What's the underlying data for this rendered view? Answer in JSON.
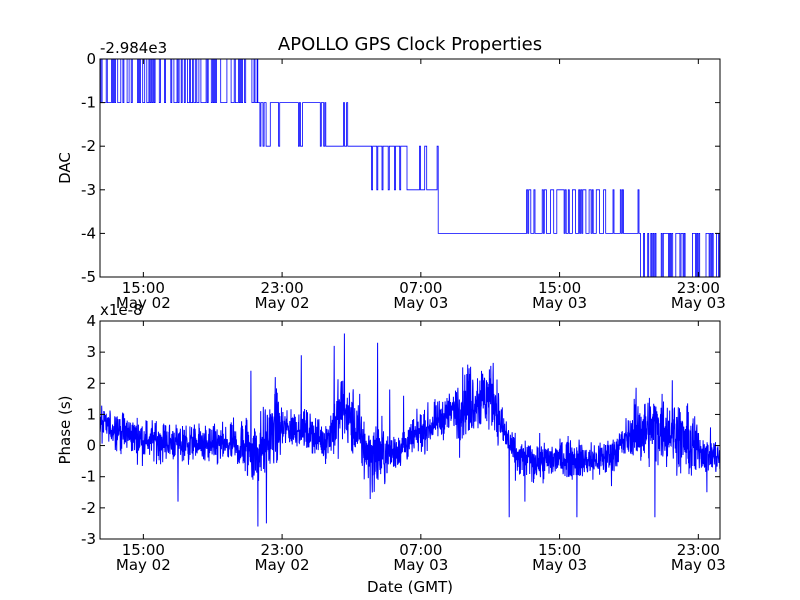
{
  "title": "APOLLO GPS Clock Properties",
  "colors": {
    "series": "#0000ff",
    "axes": "#000000",
    "background": "#ffffff"
  },
  "chart_data": [
    {
      "type": "line",
      "title": "APOLLO GPS Clock Properties",
      "ylabel": "DAC",
      "xlabel": "",
      "y_offset_label": "-2.984e3",
      "ylim": [
        -5,
        0
      ],
      "xlim_hours": [
        12.5,
        48.25
      ],
      "grid": false,
      "legend": "none",
      "yticks": [
        {
          "value": 0,
          "label": "0"
        },
        {
          "value": -1,
          "label": "-1"
        },
        {
          "value": -2,
          "label": "-2"
        },
        {
          "value": -3,
          "label": "-3"
        },
        {
          "value": -4,
          "label": "-4"
        },
        {
          "value": -5,
          "label": "-5"
        }
      ],
      "xticks": [
        {
          "value": 15,
          "time": "15:00",
          "date": "May 02"
        },
        {
          "value": 23,
          "time": "23:00",
          "date": "May 02"
        },
        {
          "value": 31,
          "time": "07:00",
          "date": "May 03"
        },
        {
          "value": 39,
          "time": "15:00",
          "date": "May 03"
        },
        {
          "value": 47,
          "time": "23:00",
          "date": "May 03"
        }
      ],
      "levels": [
        {
          "start": 12.5,
          "end": 21.6,
          "base": -1,
          "alt": 0,
          "toggle": 0.55
        },
        {
          "start": 21.6,
          "end": 25.4,
          "base": -1,
          "alt": -2,
          "toggle": 0.18
        },
        {
          "start": 25.4,
          "end": 27.5,
          "base": -2,
          "alt": -1,
          "toggle": 0.1
        },
        {
          "start": 27.5,
          "end": 30.2,
          "base": -2,
          "alt": -3,
          "toggle": 0.12
        },
        {
          "start": 30.2,
          "end": 32.0,
          "base": -3,
          "alt": -2,
          "toggle": 0.15
        },
        {
          "start": 32.0,
          "end": 36.8,
          "base": -4,
          "alt": -4,
          "toggle": 0.0
        },
        {
          "start": 36.8,
          "end": 43.6,
          "base": -4,
          "alt": -3,
          "toggle": 0.35
        },
        {
          "start": 43.6,
          "end": 48.25,
          "base": -4,
          "alt": -5,
          "toggle": 0.5
        }
      ]
    },
    {
      "type": "line",
      "ylabel": "Phase (s)",
      "xlabel": "Date (GMT)",
      "y_offset_label": "x1e-8",
      "ylim": [
        -3,
        4
      ],
      "xlim_hours": [
        12.5,
        48.25
      ],
      "grid": false,
      "legend": "none",
      "yticks": [
        {
          "value": 4,
          "label": "4"
        },
        {
          "value": 3,
          "label": "3"
        },
        {
          "value": 2,
          "label": "2"
        },
        {
          "value": 1,
          "label": "1"
        },
        {
          "value": 0,
          "label": "0"
        },
        {
          "value": -1,
          "label": "-1"
        },
        {
          "value": -2,
          "label": "-2"
        },
        {
          "value": -3,
          "label": "-3"
        }
      ],
      "xticks": [
        {
          "value": 15,
          "time": "15:00",
          "date": "May 02"
        },
        {
          "value": 23,
          "time": "23:00",
          "date": "May 02"
        },
        {
          "value": 31,
          "time": "07:00",
          "date": "May 03"
        },
        {
          "value": 39,
          "time": "15:00",
          "date": "May 03"
        },
        {
          "value": 47,
          "time": "23:00",
          "date": "May 03"
        }
      ],
      "trend": [
        [
          12.5,
          0.7
        ],
        [
          13.5,
          0.5
        ],
        [
          15.0,
          0.2
        ],
        [
          17.0,
          0.1
        ],
        [
          19.0,
          0.0
        ],
        [
          20.5,
          0.0
        ],
        [
          21.6,
          -0.2
        ],
        [
          22.5,
          0.5
        ],
        [
          24.0,
          0.6
        ],
        [
          25.5,
          0.1
        ],
        [
          26.5,
          1.2
        ],
        [
          27.3,
          0.5
        ],
        [
          28.0,
          -0.4
        ],
        [
          29.5,
          -0.2
        ],
        [
          30.5,
          0.2
        ],
        [
          31.5,
          0.6
        ],
        [
          32.5,
          1.0
        ],
        [
          34.0,
          1.5
        ],
        [
          35.2,
          1.6
        ],
        [
          35.5,
          0.8
        ],
        [
          36.5,
          -0.4
        ],
        [
          38.0,
          -0.5
        ],
        [
          39.5,
          -0.4
        ],
        [
          41.0,
          -0.5
        ],
        [
          42.0,
          -0.3
        ],
        [
          43.0,
          0.3
        ],
        [
          44.5,
          0.6
        ],
        [
          45.5,
          0.5
        ],
        [
          46.5,
          0.0
        ],
        [
          48.25,
          -0.4
        ]
      ],
      "spikes": [
        [
          17.0,
          -1.8
        ],
        [
          20.2,
          0.9
        ],
        [
          21.2,
          2.4
        ],
        [
          21.6,
          -2.6
        ],
        [
          22.1,
          -2.5
        ],
        [
          22.6,
          2.2
        ],
        [
          24.1,
          2.9
        ],
        [
          26.0,
          3.2
        ],
        [
          26.6,
          3.6
        ],
        [
          28.0,
          0.3
        ],
        [
          28.5,
          3.3
        ],
        [
          29.2,
          1.8
        ],
        [
          30.0,
          1.6
        ],
        [
          33.7,
          2.6
        ],
        [
          35.3,
          1.6
        ],
        [
          36.1,
          -2.3
        ],
        [
          37.0,
          -1.8
        ],
        [
          37.5,
          -1.2
        ],
        [
          40.0,
          -2.3
        ],
        [
          42.0,
          -1.3
        ],
        [
          43.3,
          1.5
        ],
        [
          44.5,
          -2.3
        ],
        [
          45.5,
          2.1
        ],
        [
          47.5,
          -1.5
        ]
      ],
      "noise_amplitude": 0.3,
      "samples": 2600
    }
  ]
}
